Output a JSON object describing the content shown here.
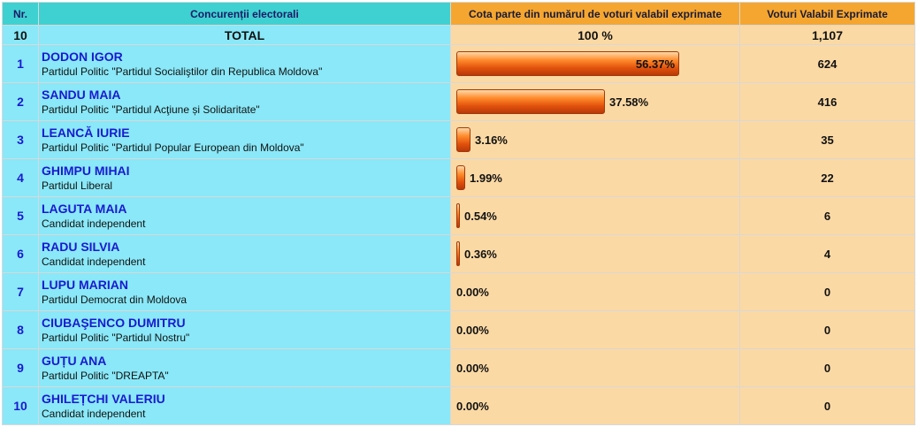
{
  "header": {
    "nr": "Nr.",
    "candidates": "Concurenții electorali",
    "share": "Cota parte din numărul de voturi valabil exprimate",
    "votes": "Voturi Valabil Exprimate"
  },
  "total": {
    "count": "10",
    "label": "TOTAL",
    "share": "100 %",
    "votes": "1,107"
  },
  "rows": [
    {
      "nr": "1",
      "name": "DODON IGOR",
      "party": "Partidul Politic \"Partidul Socialiştilor din Republica Moldova\"",
      "pct_label": "56.37%",
      "pct": 56.37,
      "votes": "624"
    },
    {
      "nr": "2",
      "name": "SANDU MAIA",
      "party": "Partidul Politic \"Partidul Acţiune și Solidaritate\"",
      "pct_label": "37.58%",
      "pct": 37.58,
      "votes": "416"
    },
    {
      "nr": "3",
      "name": "LEANCĂ IURIE",
      "party": "Partidul Politic \"Partidul Popular European din Moldova\"",
      "pct_label": "3.16%",
      "pct": 3.16,
      "votes": "35"
    },
    {
      "nr": "4",
      "name": "GHIMPU MIHAI",
      "party": "Partidul Liberal",
      "pct_label": "1.99%",
      "pct": 1.99,
      "votes": "22"
    },
    {
      "nr": "5",
      "name": "LAGUTA MAIA",
      "party": "Candidat independent",
      "pct_label": "0.54%",
      "pct": 0.54,
      "votes": "6"
    },
    {
      "nr": "6",
      "name": "RADU SILVIA",
      "party": "Candidat independent",
      "pct_label": "0.36%",
      "pct": 0.36,
      "votes": "4"
    },
    {
      "nr": "7",
      "name": "LUPU MARIAN",
      "party": "Partidul Democrat din Moldova",
      "pct_label": "0.00%",
      "pct": 0,
      "votes": "0"
    },
    {
      "nr": "8",
      "name": "CIUBAŞENCO DUMITRU",
      "party": "Partidul Politic \"Partidul Nostru\"",
      "pct_label": "0.00%",
      "pct": 0,
      "votes": "0"
    },
    {
      "nr": "9",
      "name": "GUȚU ANA",
      "party": "Partidul Politic \"DREAPTA\"",
      "pct_label": "0.00%",
      "pct": 0,
      "votes": "0"
    },
    {
      "nr": "10",
      "name": "GHILEȚCHI VALERIU",
      "party": "Candidat independent",
      "pct_label": "0.00%",
      "pct": 0,
      "votes": "0"
    }
  ]
}
